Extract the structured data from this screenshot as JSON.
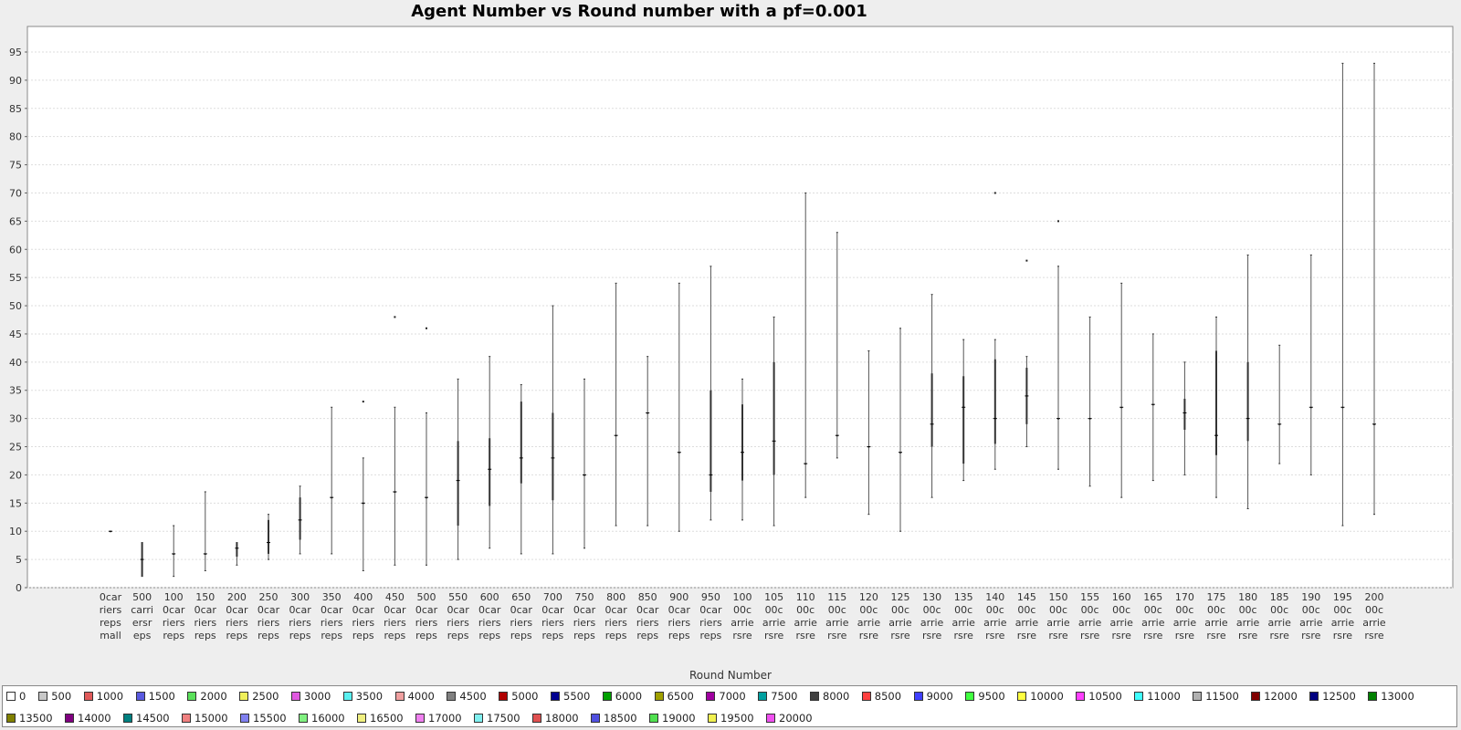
{
  "chart_data": {
    "type": "box",
    "title": "Agent Number vs Round number with a pf=0.001",
    "xlabel": "Round Number",
    "ylabel": "",
    "ylim": [
      0,
      95
    ],
    "yticks": [
      0,
      5,
      10,
      15,
      20,
      25,
      30,
      35,
      40,
      45,
      50,
      55,
      60,
      65,
      70,
      75,
      80,
      85,
      90,
      95
    ],
    "grid": true,
    "legend_position": "bottom",
    "categories": [
      [
        "0car",
        "riers",
        "reps",
        "mall"
      ],
      [
        "500",
        "carri",
        "ersr",
        "eps"
      ],
      [
        "100",
        "0car",
        "riers",
        "reps"
      ],
      [
        "150",
        "0car",
        "riers",
        "reps"
      ],
      [
        "200",
        "0car",
        "riers",
        "reps"
      ],
      [
        "250",
        "0car",
        "riers",
        "reps"
      ],
      [
        "300",
        "0car",
        "riers",
        "reps"
      ],
      [
        "350",
        "0car",
        "riers",
        "reps"
      ],
      [
        "400",
        "0car",
        "riers",
        "reps"
      ],
      [
        "450",
        "0car",
        "riers",
        "reps"
      ],
      [
        "500",
        "0car",
        "riers",
        "reps"
      ],
      [
        "550",
        "0car",
        "riers",
        "reps"
      ],
      [
        "600",
        "0car",
        "riers",
        "reps"
      ],
      [
        "650",
        "0car",
        "riers",
        "reps"
      ],
      [
        "700",
        "0car",
        "riers",
        "reps"
      ],
      [
        "750",
        "0car",
        "riers",
        "reps"
      ],
      [
        "800",
        "0car",
        "riers",
        "reps"
      ],
      [
        "850",
        "0car",
        "riers",
        "reps"
      ],
      [
        "900",
        "0car",
        "riers",
        "reps"
      ],
      [
        "950",
        "0car",
        "riers",
        "reps"
      ],
      [
        "100",
        "00c",
        "arrie",
        "rsre"
      ],
      [
        "105",
        "00c",
        "arrie",
        "rsre"
      ],
      [
        "110",
        "00c",
        "arrie",
        "rsre"
      ],
      [
        "115",
        "00c",
        "arrie",
        "rsre"
      ],
      [
        "120",
        "00c",
        "arrie",
        "rsre"
      ],
      [
        "125",
        "00c",
        "arrie",
        "rsre"
      ],
      [
        "130",
        "00c",
        "arrie",
        "rsre"
      ],
      [
        "135",
        "00c",
        "arrie",
        "rsre"
      ],
      [
        "140",
        "00c",
        "arrie",
        "rsre"
      ],
      [
        "145",
        "00c",
        "arrie",
        "rsre"
      ],
      [
        "150",
        "00c",
        "arrie",
        "rsre"
      ],
      [
        "155",
        "00c",
        "arrie",
        "rsre"
      ],
      [
        "160",
        "00c",
        "arrie",
        "rsre"
      ],
      [
        "165",
        "00c",
        "arrie",
        "rsre"
      ],
      [
        "170",
        "00c",
        "arrie",
        "rsre"
      ],
      [
        "175",
        "00c",
        "arrie",
        "rsre"
      ],
      [
        "180",
        "00c",
        "arrie",
        "rsre"
      ],
      [
        "185",
        "00c",
        "arrie",
        "rsre"
      ],
      [
        "190",
        "00c",
        "arrie",
        "rsre"
      ],
      [
        "195",
        "00c",
        "arrie",
        "rsre"
      ],
      [
        "200",
        "00c",
        "arrie",
        "rsre"
      ]
    ],
    "series": [
      {
        "min": 10,
        "q1": 10,
        "median": 10,
        "q3": 10,
        "max": 10
      },
      {
        "min": 2,
        "q1": 2,
        "median": 5,
        "q3": 8,
        "max": 8
      },
      {
        "min": 2,
        "q1": 6,
        "median": 6,
        "q3": 6,
        "max": 11
      },
      {
        "min": 3,
        "q1": 6,
        "median": 6,
        "q3": 6,
        "max": 17
      },
      {
        "min": 4,
        "q1": 5.5,
        "median": 7,
        "q3": 8,
        "max": 8
      },
      {
        "min": 5,
        "q1": 6,
        "median": 8,
        "q3": 12,
        "max": 13
      },
      {
        "min": 6,
        "q1": 8.5,
        "median": 12,
        "q3": 16,
        "max": 18
      },
      {
        "min": 6,
        "q1": 16,
        "median": 16,
        "q3": 16,
        "max": 32
      },
      {
        "min": 3,
        "q1": 15,
        "median": 15,
        "q3": 15,
        "max": 23,
        "outliers": [
          33
        ]
      },
      {
        "min": 4,
        "q1": 17,
        "median": 17,
        "q3": 17,
        "max": 32,
        "outliers": [
          48
        ]
      },
      {
        "min": 4,
        "q1": 16,
        "median": 16,
        "q3": 16,
        "max": 31,
        "outliers": [
          46
        ]
      },
      {
        "min": 5,
        "q1": 11,
        "median": 19,
        "q3": 26,
        "max": 37
      },
      {
        "min": 7,
        "q1": 14.5,
        "median": 21,
        "q3": 26.5,
        "max": 41
      },
      {
        "min": 6,
        "q1": 18.5,
        "median": 23,
        "q3": 33,
        "max": 36
      },
      {
        "min": 6,
        "q1": 15.5,
        "median": 23,
        "q3": 31,
        "max": 50
      },
      {
        "min": 7,
        "q1": 20,
        "median": 20,
        "q3": 20,
        "max": 37
      },
      {
        "min": 11,
        "q1": 27,
        "median": 27,
        "q3": 27,
        "max": 54
      },
      {
        "min": 11,
        "q1": 31,
        "median": 31,
        "q3": 31,
        "max": 41
      },
      {
        "min": 10,
        "q1": 24,
        "median": 24,
        "q3": 24,
        "max": 54
      },
      {
        "min": 12,
        "q1": 17,
        "median": 20,
        "q3": 35,
        "max": 57
      },
      {
        "min": 12,
        "q1": 19,
        "median": 24,
        "q3": 32.5,
        "max": 37
      },
      {
        "min": 11,
        "q1": 20,
        "median": 26,
        "q3": 40,
        "max": 48
      },
      {
        "min": 16,
        "q1": 22,
        "median": 22,
        "q3": 22,
        "max": 70
      },
      {
        "min": 23,
        "q1": 27,
        "median": 27,
        "q3": 27,
        "max": 63
      },
      {
        "min": 13,
        "q1": 25,
        "median": 25,
        "q3": 25,
        "max": 42
      },
      {
        "min": 10,
        "q1": 24,
        "median": 24,
        "q3": 24,
        "max": 46
      },
      {
        "min": 16,
        "q1": 25,
        "median": 29,
        "q3": 38,
        "max": 52
      },
      {
        "min": 19,
        "q1": 22,
        "median": 32,
        "q3": 37.5,
        "max": 44
      },
      {
        "min": 21,
        "q1": 25.5,
        "median": 30,
        "q3": 40.5,
        "max": 44,
        "outliers": [
          70
        ]
      },
      {
        "min": 25,
        "q1": 29,
        "median": 34,
        "q3": 39,
        "max": 41,
        "outliers": [
          58
        ]
      },
      {
        "min": 21,
        "q1": 30,
        "median": 30,
        "q3": 30,
        "max": 57,
        "outliers": [
          65
        ]
      },
      {
        "min": 18,
        "q1": 30,
        "median": 30,
        "q3": 30,
        "max": 48
      },
      {
        "min": 16,
        "q1": 32,
        "median": 32,
        "q3": 32,
        "max": 54
      },
      {
        "min": 19,
        "q1": 32.5,
        "median": 32.5,
        "q3": 32.5,
        "max": 45
      },
      {
        "min": 20,
        "q1": 28,
        "median": 31,
        "q3": 33.5,
        "max": 40
      },
      {
        "min": 16,
        "q1": 23.5,
        "median": 27,
        "q3": 42,
        "max": 48
      },
      {
        "min": 14,
        "q1": 26,
        "median": 30,
        "q3": 40,
        "max": 59
      },
      {
        "min": 22,
        "q1": 29,
        "median": 29,
        "q3": 29,
        "max": 43
      },
      {
        "min": 20,
        "q1": 32,
        "median": 32,
        "q3": 32,
        "max": 59
      },
      {
        "min": 11,
        "q1": 32,
        "median": 32,
        "q3": 32,
        "max": 93
      },
      {
        "min": 13,
        "q1": 29,
        "median": 29,
        "q3": 29,
        "max": 93
      }
    ],
    "legend": [
      {
        "label": "0",
        "color": "#ffffff"
      },
      {
        "label": "500",
        "color": "#c8c8c8"
      },
      {
        "label": "1000",
        "color": "#e05a5a"
      },
      {
        "label": "1500",
        "color": "#5a5ae0"
      },
      {
        "label": "2000",
        "color": "#5ae05a"
      },
      {
        "label": "2500",
        "color": "#f0f05a"
      },
      {
        "label": "3000",
        "color": "#e05ae0"
      },
      {
        "label": "3500",
        "color": "#5af0f0"
      },
      {
        "label": "4000",
        "color": "#f0a0a0"
      },
      {
        "label": "4500",
        "color": "#808080"
      },
      {
        "label": "5000",
        "color": "#b00000"
      },
      {
        "label": "5500",
        "color": "#000090"
      },
      {
        "label": "6000",
        "color": "#00a000"
      },
      {
        "label": "6500",
        "color": "#a0a000"
      },
      {
        "label": "7000",
        "color": "#a000a0"
      },
      {
        "label": "7500",
        "color": "#00a0a0"
      },
      {
        "label": "8000",
        "color": "#404040"
      },
      {
        "label": "8500",
        "color": "#ff4040"
      },
      {
        "label": "9000",
        "color": "#4040ff"
      },
      {
        "label": "9500",
        "color": "#40ff40"
      },
      {
        "label": "10000",
        "color": "#ffff40"
      },
      {
        "label": "10500",
        "color": "#ff40ff"
      },
      {
        "label": "11000",
        "color": "#40ffff"
      },
      {
        "label": "11500",
        "color": "#b0b0b0"
      },
      {
        "label": "12000",
        "color": "#800000"
      },
      {
        "label": "12500",
        "color": "#000080"
      },
      {
        "label": "13000",
        "color": "#008000"
      },
      {
        "label": "13500",
        "color": "#808000"
      },
      {
        "label": "14000",
        "color": "#800080"
      },
      {
        "label": "14500",
        "color": "#008080"
      },
      {
        "label": "15000",
        "color": "#f08080"
      },
      {
        "label": "15500",
        "color": "#8080f0"
      },
      {
        "label": "16000",
        "color": "#80f080"
      },
      {
        "label": "16500",
        "color": "#f0f080"
      },
      {
        "label": "17000",
        "color": "#f080f0"
      },
      {
        "label": "17500",
        "color": "#80f0f0"
      },
      {
        "label": "18000",
        "color": "#e05050"
      },
      {
        "label": "18500",
        "color": "#5050e0"
      },
      {
        "label": "19000",
        "color": "#50e050"
      },
      {
        "label": "19500",
        "color": "#f0f050"
      },
      {
        "label": "20000",
        "color": "#f050f0"
      }
    ]
  }
}
